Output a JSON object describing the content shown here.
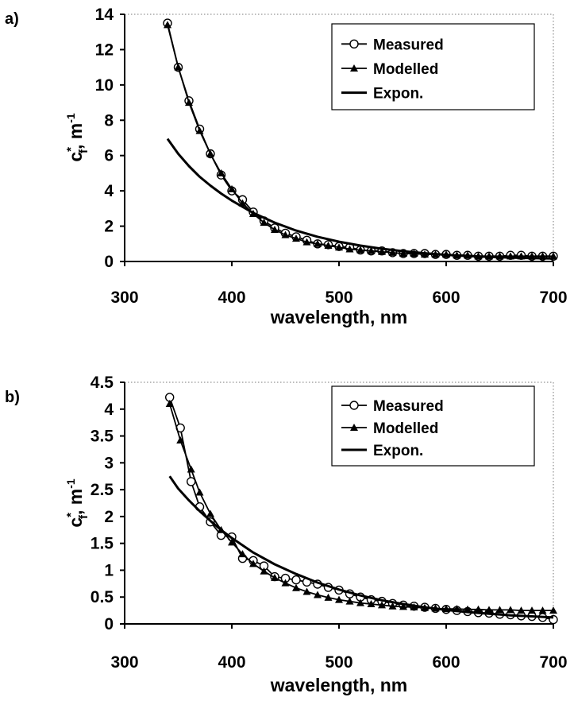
{
  "chart_data": [
    {
      "type": "line",
      "panel_label": "a)",
      "xlabel": "wavelength, nm",
      "ylabel_main": "c",
      "ylabel_sup": "*",
      "ylabel_sub": "f",
      "ylabel_unit": ", m",
      "ylabel_unit_sup": "-1",
      "xlim": [
        300,
        700
      ],
      "ylim": [
        0,
        14
      ],
      "xticks": [
        "300",
        "400",
        "500",
        "600",
        "700"
      ],
      "yticks": [
        "0",
        "2",
        "4",
        "6",
        "8",
        "10",
        "12",
        "14"
      ],
      "grid": false,
      "legend_position": "top-right",
      "series": [
        {
          "name": "Measured",
          "marker": "circle",
          "x": [
            340,
            350,
            360,
            370,
            380,
            390,
            400,
            410,
            420,
            430,
            440,
            450,
            460,
            470,
            480,
            490,
            500,
            510,
            520,
            530,
            540,
            550,
            560,
            570,
            580,
            590,
            600,
            610,
            620,
            630,
            640,
            650,
            660,
            670,
            680,
            690,
            700
          ],
          "y": [
            13.5,
            11.0,
            9.1,
            7.5,
            6.1,
            4.9,
            4.0,
            3.5,
            2.8,
            2.3,
            1.9,
            1.6,
            1.4,
            1.2,
            1.0,
            0.95,
            0.85,
            0.8,
            0.65,
            0.6,
            0.6,
            0.5,
            0.45,
            0.45,
            0.45,
            0.4,
            0.4,
            0.35,
            0.35,
            0.3,
            0.3,
            0.3,
            0.35,
            0.35,
            0.3,
            0.3,
            0.3
          ]
        },
        {
          "name": "Modelled",
          "marker": "triangle",
          "x": [
            340,
            350,
            360,
            370,
            380,
            390,
            400,
            410,
            420,
            430,
            440,
            450,
            460,
            470,
            480,
            490,
            500,
            510,
            520,
            530,
            540,
            550,
            560,
            570,
            580,
            590,
            600,
            610,
            620,
            630,
            640,
            650,
            660,
            670,
            680,
            690,
            700
          ],
          "y": [
            13.4,
            11.0,
            9.0,
            7.4,
            6.1,
            5.0,
            4.1,
            3.3,
            2.7,
            2.2,
            1.8,
            1.5,
            1.3,
            1.1,
            1.0,
            0.9,
            0.8,
            0.7,
            0.65,
            0.6,
            0.55,
            0.5,
            0.45,
            0.45,
            0.4,
            0.4,
            0.4,
            0.35,
            0.35,
            0.3,
            0.3,
            0.3,
            0.3,
            0.3,
            0.3,
            0.3,
            0.3
          ]
        },
        {
          "name": "Expon.",
          "marker": "none",
          "x": [
            340,
            350,
            360,
            370,
            380,
            390,
            400,
            420,
            440,
            460,
            480,
            500,
            520,
            540,
            560,
            580,
            600,
            620,
            640,
            660,
            680,
            700
          ],
          "y": [
            6.95,
            6.1,
            5.4,
            4.8,
            4.3,
            3.85,
            3.45,
            2.75,
            2.2,
            1.75,
            1.4,
            1.12,
            0.9,
            0.72,
            0.58,
            0.47,
            0.38,
            0.31,
            0.26,
            0.22,
            0.19,
            0.17
          ]
        }
      ]
    },
    {
      "type": "line",
      "panel_label": "b)",
      "xlabel": "wavelength, nm",
      "ylabel_main": "c",
      "ylabel_sup": "*",
      "ylabel_sub": "f",
      "ylabel_unit": ", m",
      "ylabel_unit_sup": "-1",
      "xlim": [
        300,
        700
      ],
      "ylim": [
        0,
        4.5
      ],
      "xticks": [
        "300",
        "400",
        "500",
        "600",
        "700"
      ],
      "yticks": [
        "0",
        "0.5",
        "1",
        "1.5",
        "2",
        "2.5",
        "3",
        "3.5",
        "4",
        "4.5"
      ],
      "grid": false,
      "legend_position": "top-right",
      "series": [
        {
          "name": "Measured",
          "marker": "circle",
          "x": [
            342,
            352,
            362,
            370,
            380,
            390,
            400,
            410,
            420,
            430,
            440,
            450,
            460,
            470,
            480,
            490,
            500,
            510,
            520,
            530,
            540,
            550,
            560,
            570,
            580,
            590,
            600,
            610,
            620,
            630,
            640,
            650,
            660,
            670,
            680,
            690,
            700
          ],
          "y": [
            4.22,
            3.65,
            2.65,
            2.18,
            1.9,
            1.65,
            1.62,
            1.22,
            1.18,
            1.08,
            0.88,
            0.85,
            0.82,
            0.78,
            0.74,
            0.68,
            0.63,
            0.56,
            0.5,
            0.45,
            0.42,
            0.38,
            0.35,
            0.33,
            0.31,
            0.29,
            0.27,
            0.25,
            0.23,
            0.21,
            0.2,
            0.18,
            0.17,
            0.15,
            0.14,
            0.12,
            0.08
          ]
        },
        {
          "name": "Modelled",
          "marker": "triangle",
          "x": [
            342,
            352,
            362,
            370,
            380,
            390,
            400,
            410,
            420,
            430,
            440,
            450,
            460,
            470,
            480,
            490,
            500,
            510,
            520,
            530,
            540,
            550,
            560,
            570,
            580,
            590,
            600,
            610,
            620,
            630,
            640,
            650,
            660,
            670,
            680,
            690,
            700
          ],
          "y": [
            4.1,
            3.42,
            2.88,
            2.45,
            2.05,
            1.75,
            1.52,
            1.3,
            1.12,
            0.98,
            0.86,
            0.76,
            0.67,
            0.6,
            0.54,
            0.49,
            0.45,
            0.42,
            0.39,
            0.37,
            0.35,
            0.33,
            0.32,
            0.31,
            0.3,
            0.29,
            0.28,
            0.28,
            0.27,
            0.27,
            0.26,
            0.26,
            0.26,
            0.25,
            0.25,
            0.25,
            0.25
          ]
        },
        {
          "name": "Expon.",
          "marker": "none",
          "x": [
            342,
            350,
            360,
            370,
            380,
            390,
            400,
            420,
            440,
            460,
            480,
            500,
            520,
            540,
            560,
            580,
            600,
            620,
            640,
            660,
            680,
            700
          ],
          "y": [
            2.75,
            2.52,
            2.3,
            2.1,
            1.92,
            1.75,
            1.6,
            1.33,
            1.11,
            0.93,
            0.77,
            0.64,
            0.53,
            0.44,
            0.37,
            0.31,
            0.26,
            0.22,
            0.19,
            0.16,
            0.14,
            0.12
          ]
        }
      ]
    }
  ]
}
